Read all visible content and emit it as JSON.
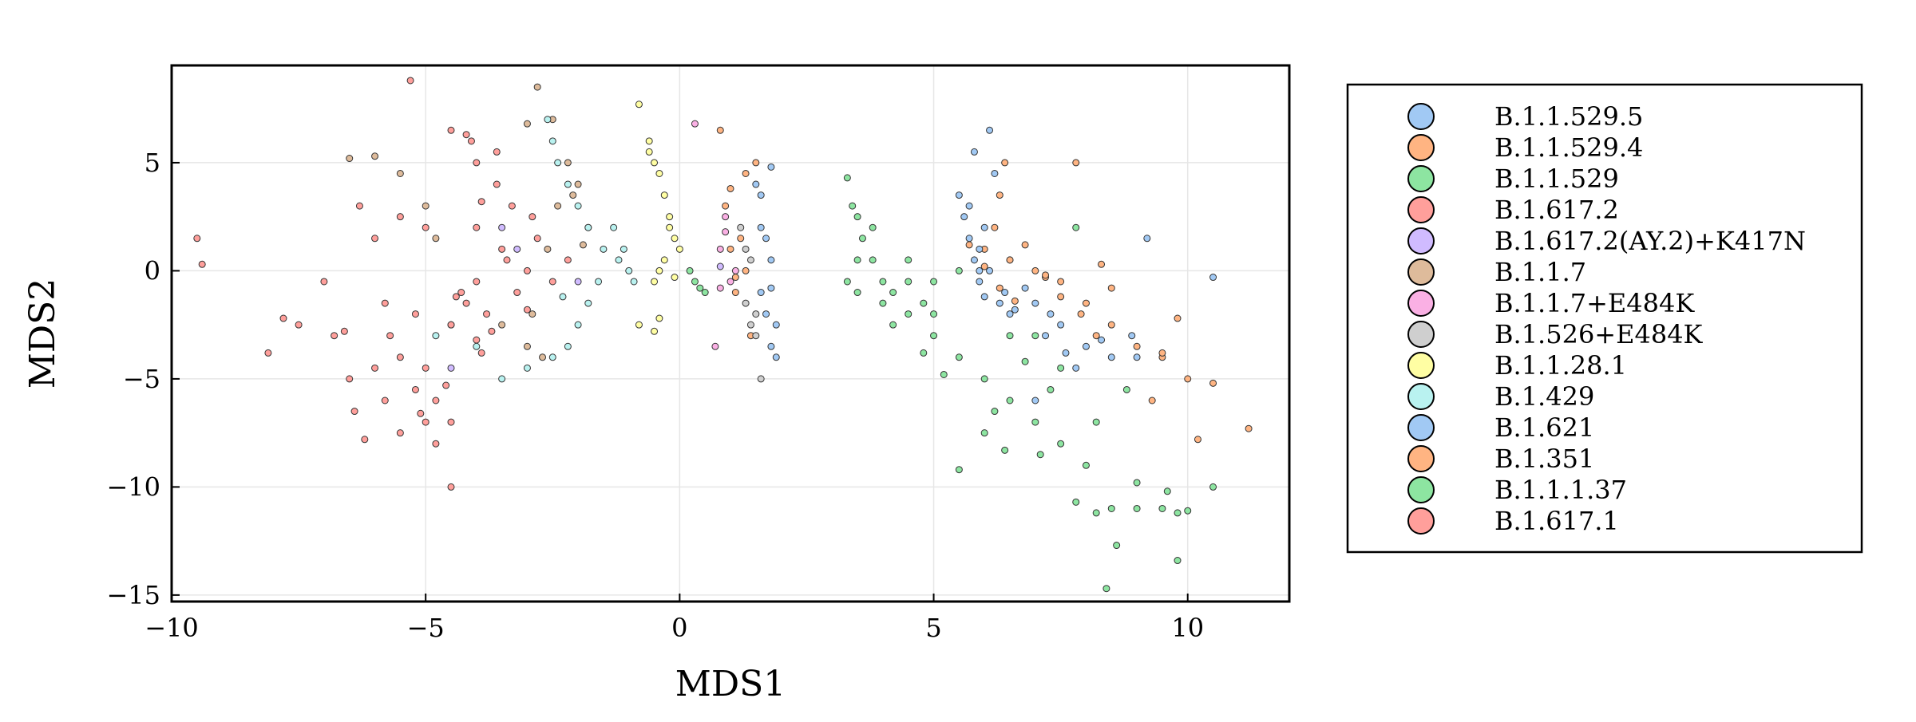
{
  "chart_data": {
    "type": "scatter",
    "title": "",
    "xlabel": "MDS1",
    "ylabel": "MDS2",
    "xlim": [
      -10,
      12
    ],
    "ylim": [
      -15.3,
      9.5
    ],
    "xticks": [
      -10,
      -5,
      0,
      5,
      10
    ],
    "yticks": [
      -15,
      -10,
      -5,
      0,
      5
    ],
    "xtick_labels": [
      "−10",
      "−5",
      "0",
      "5",
      "10"
    ],
    "ytick_labels": [
      "−15",
      "−10",
      "−5",
      "0",
      "5"
    ],
    "grid": true,
    "legend_position": "right outside",
    "series": [
      {
        "name": "B.1.1.529.5",
        "color": "#a1c9f4",
        "points": [
          [
            5.5,
            3.5
          ],
          [
            5.6,
            2.5
          ],
          [
            5.7,
            1.5
          ],
          [
            5.8,
            0.5
          ],
          [
            5.9,
            -0.5
          ],
          [
            6.0,
            -1.2
          ],
          [
            6.2,
            4.5
          ],
          [
            5.8,
            5.5
          ],
          [
            6.5,
            -2.0
          ],
          [
            7.0,
            -1.5
          ],
          [
            5.7,
            3.0
          ],
          [
            6.0,
            2.0
          ],
          [
            6.5,
            0.5
          ],
          [
            6.8,
            -0.8
          ],
          [
            7.5,
            -2.5
          ],
          [
            8.0,
            -3.5
          ],
          [
            8.5,
            -4.0
          ],
          [
            7.2,
            -3.0
          ],
          [
            6.1,
            6.5
          ],
          [
            9.2,
            1.5
          ],
          [
            10.5,
            -0.3
          ],
          [
            7.8,
            -4.5
          ],
          [
            8.3,
            -3.2
          ],
          [
            7.0,
            -6.0
          ],
          [
            1.6,
            -1.0
          ],
          [
            1.8,
            0.5
          ],
          [
            1.6,
            2.0
          ],
          [
            1.5,
            4.0
          ],
          [
            1.7,
            -2.0
          ],
          [
            1.8,
            -3.5
          ],
          [
            1.9,
            -4.0
          ],
          [
            5.9,
            0.0
          ],
          [
            6.3,
            -1.5
          ],
          [
            7.3,
            -2.0
          ]
        ]
      },
      {
        "name": "B.1.1.529.4",
        "color": "#ffb482",
        "points": [
          [
            6.3,
            3.5
          ],
          [
            6.4,
            5.0
          ],
          [
            6.2,
            2.0
          ],
          [
            6.0,
            1.0
          ],
          [
            6.5,
            0.5
          ],
          [
            7.0,
            0.0
          ],
          [
            7.5,
            -0.5
          ],
          [
            8.0,
            -1.5
          ],
          [
            8.5,
            -2.5
          ],
          [
            9.0,
            -3.5
          ],
          [
            9.5,
            -4.0
          ],
          [
            10.0,
            -5.0
          ],
          [
            10.5,
            -5.2
          ],
          [
            11.2,
            -7.3
          ],
          [
            7.8,
            5.0
          ],
          [
            8.3,
            0.3
          ],
          [
            9.8,
            -2.2
          ],
          [
            9.3,
            -6.0
          ],
          [
            10.2,
            -7.8
          ],
          [
            6.8,
            1.2
          ],
          [
            7.2,
            -0.3
          ],
          [
            0.9,
            3.0
          ],
          [
            1.0,
            1.0
          ],
          [
            1.1,
            -1.0
          ],
          [
            1.3,
            4.5
          ],
          [
            1.5,
            5.0
          ],
          [
            1.4,
            -3.0
          ],
          [
            0.8,
            6.5
          ],
          [
            1.3,
            0.0
          ],
          [
            7.9,
            -2.0
          ],
          [
            8.5,
            -0.8
          ]
        ]
      },
      {
        "name": "B.1.1.529",
        "color": "#8de5a1",
        "points": [
          [
            3.3,
            -0.5
          ],
          [
            3.5,
            0.5
          ],
          [
            3.6,
            1.5
          ],
          [
            3.8,
            2.0
          ],
          [
            4.0,
            -0.5
          ],
          [
            4.2,
            -1.0
          ],
          [
            4.5,
            0.5
          ],
          [
            3.5,
            2.5
          ],
          [
            3.4,
            3.0
          ],
          [
            4.8,
            -1.5
          ],
          [
            5.0,
            -0.5
          ],
          [
            3.3,
            4.3
          ],
          [
            0.3,
            -0.5
          ],
          [
            0.5,
            -1.0
          ],
          [
            0.2,
            0.0
          ],
          [
            0.4,
            -0.8
          ]
        ]
      },
      {
        "name": "B.1.617.2",
        "color": "#ff9f9b",
        "points": [
          [
            -3.0,
            0.0
          ],
          [
            -3.5,
            1.0
          ],
          [
            -4.0,
            2.0
          ],
          [
            -3.2,
            -1.0
          ],
          [
            -3.8,
            -2.0
          ],
          [
            -4.2,
            -1.5
          ],
          [
            -2.8,
            1.5
          ],
          [
            -3.3,
            3.0
          ],
          [
            -3.6,
            4.0
          ],
          [
            -4.0,
            5.0
          ],
          [
            -4.1,
            6.0
          ],
          [
            -2.5,
            -0.5
          ],
          [
            -2.2,
            0.5
          ],
          [
            -3.0,
            -1.8
          ],
          [
            -4.0,
            -0.5
          ],
          [
            -3.4,
            0.5
          ],
          [
            -2.9,
            2.5
          ],
          [
            -3.9,
            3.2
          ],
          [
            -3.7,
            -2.8
          ],
          [
            -4.4,
            -1.2
          ]
        ]
      },
      {
        "name": "B.1.617.2(AY.2)+K417N",
        "color": "#d0bbff",
        "points": [
          [
            -3.2,
            1.0
          ],
          [
            -2.0,
            -0.5
          ],
          [
            0.8,
            0.2
          ],
          [
            -3.5,
            2.0
          ],
          [
            -4.5,
            -4.5
          ]
        ]
      },
      {
        "name": "B.1.1.7",
        "color": "#debb9b",
        "points": [
          [
            -2.5,
            7.0
          ],
          [
            -2.8,
            8.5
          ],
          [
            -2.0,
            4.0
          ],
          [
            -1.8,
            2.0
          ],
          [
            -2.2,
            5.0
          ],
          [
            -2.4,
            3.0
          ],
          [
            -2.6,
            1.0
          ],
          [
            -2.9,
            -2.0
          ],
          [
            -3.0,
            -3.5
          ],
          [
            -2.7,
            -4.0
          ],
          [
            -3.5,
            -2.5
          ],
          [
            -6.5,
            5.2
          ],
          [
            -6.0,
            5.3
          ],
          [
            -5.5,
            4.5
          ],
          [
            -5.0,
            3.0
          ],
          [
            -4.8,
            1.5
          ],
          [
            -3.0,
            6.8
          ],
          [
            -2.1,
            3.5
          ],
          [
            -1.9,
            1.2
          ]
        ]
      },
      {
        "name": "B.1.1.7+E484K",
        "color": "#fab0e4",
        "points": [
          [
            0.8,
            1.0
          ],
          [
            1.0,
            -0.5
          ],
          [
            0.3,
            6.8
          ],
          [
            0.9,
            2.5
          ],
          [
            1.1,
            0.0
          ],
          [
            0.8,
            -0.8
          ],
          [
            0.7,
            -3.5
          ],
          [
            0.9,
            1.8
          ]
        ]
      },
      {
        "name": "B.1.526+E484K",
        "color": "#cfcfcf",
        "points": [
          [
            1.4,
            -2.5
          ],
          [
            1.5,
            -3.0
          ],
          [
            1.3,
            -1.5
          ],
          [
            1.2,
            2.0
          ],
          [
            1.6,
            -5.0
          ],
          [
            1.4,
            0.5
          ],
          [
            1.5,
            -2.0
          ],
          [
            1.3,
            1.0
          ]
        ]
      },
      {
        "name": "B.1.1.28.1",
        "color": "#fffea3",
        "points": [
          [
            -0.6,
            6.0
          ],
          [
            -0.5,
            5.0
          ],
          [
            -0.4,
            4.5
          ],
          [
            -0.3,
            3.5
          ],
          [
            -0.2,
            2.5
          ],
          [
            -0.1,
            1.5
          ],
          [
            -0.3,
            0.5
          ],
          [
            -0.5,
            -0.5
          ],
          [
            -0.8,
            -2.5
          ],
          [
            -0.5,
            -2.8
          ],
          [
            -0.8,
            7.7
          ],
          [
            -0.4,
            -2.2
          ],
          [
            -0.6,
            5.5
          ],
          [
            -0.2,
            2.0
          ],
          [
            -0.4,
            0.0
          ],
          [
            0.0,
            1.0
          ],
          [
            -0.1,
            -0.3
          ]
        ]
      },
      {
        "name": "B.1.429",
        "color": "#b9f2f0",
        "points": [
          [
            -1.0,
            0.0
          ],
          [
            -1.2,
            0.5
          ],
          [
            -1.5,
            1.0
          ],
          [
            -1.8,
            2.0
          ],
          [
            -2.0,
            3.0
          ],
          [
            -2.2,
            4.0
          ],
          [
            -2.4,
            5.0
          ],
          [
            -2.5,
            6.0
          ],
          [
            -2.6,
            7.0
          ],
          [
            -1.6,
            -0.5
          ],
          [
            -1.8,
            -1.5
          ],
          [
            -2.0,
            -2.5
          ],
          [
            -2.2,
            -3.5
          ],
          [
            -2.5,
            -4.0
          ],
          [
            -3.0,
            -4.5
          ],
          [
            -3.5,
            -5.0
          ],
          [
            -4.0,
            -3.5
          ],
          [
            -1.3,
            2.0
          ],
          [
            -1.1,
            1.0
          ],
          [
            -0.9,
            -0.5
          ],
          [
            -4.5,
            -2.5
          ],
          [
            -4.8,
            -3.0
          ],
          [
            -2.3,
            -1.2
          ]
        ]
      },
      {
        "name": "B.1.621",
        "color": "#a1c9f4",
        "points": [
          [
            5.9,
            1.0
          ],
          [
            6.1,
            0.0
          ],
          [
            6.4,
            -1.0
          ],
          [
            6.6,
            -1.8
          ],
          [
            7.6,
            -3.8
          ],
          [
            8.9,
            -3.0
          ],
          [
            9.0,
            -4.0
          ],
          [
            1.7,
            1.5
          ],
          [
            1.8,
            -0.8
          ],
          [
            1.9,
            -2.5
          ],
          [
            1.6,
            3.5
          ],
          [
            1.8,
            4.8
          ]
        ]
      },
      {
        "name": "B.1.351",
        "color": "#ffb482",
        "points": [
          [
            5.7,
            1.2
          ],
          [
            6.0,
            0.2
          ],
          [
            6.3,
            -0.8
          ],
          [
            6.6,
            -1.4
          ],
          [
            7.2,
            -0.2
          ],
          [
            7.5,
            -1.2
          ],
          [
            8.2,
            -3.0
          ],
          [
            9.5,
            -3.8
          ],
          [
            1.1,
            -0.3
          ],
          [
            1.2,
            1.5
          ],
          [
            1.0,
            3.8
          ]
        ]
      },
      {
        "name": "B.1.1.1.37",
        "color": "#8de5a1",
        "points": [
          [
            3.5,
            -1.0
          ],
          [
            4.0,
            -1.5
          ],
          [
            4.5,
            -2.0
          ],
          [
            5.0,
            -3.0
          ],
          [
            5.5,
            -4.0
          ],
          [
            6.0,
            -5.0
          ],
          [
            6.5,
            -6.0
          ],
          [
            7.0,
            -7.0
          ],
          [
            7.5,
            -8.0
          ],
          [
            8.0,
            -9.0
          ],
          [
            8.5,
            -11.0
          ],
          [
            9.0,
            -11.0
          ],
          [
            9.5,
            -11.0
          ],
          [
            9.8,
            -11.2
          ],
          [
            10.0,
            -11.1
          ],
          [
            7.8,
            -10.7
          ],
          [
            8.2,
            -11.2
          ],
          [
            8.6,
            -12.7
          ],
          [
            9.8,
            -13.4
          ],
          [
            8.4,
            -14.7
          ],
          [
            9.6,
            -10.2
          ],
          [
            9.0,
            -9.8
          ],
          [
            10.5,
            -10.0
          ],
          [
            6.0,
            -7.5
          ],
          [
            5.5,
            -9.2
          ],
          [
            7.0,
            -3.0
          ],
          [
            7.5,
            -4.5
          ],
          [
            5.0,
            -2.0
          ],
          [
            6.5,
            -3.0
          ],
          [
            4.2,
            -2.5
          ],
          [
            5.2,
            -4.8
          ],
          [
            6.2,
            -6.5
          ],
          [
            7.3,
            -5.5
          ],
          [
            8.2,
            -7.0
          ],
          [
            7.8,
            2.0
          ],
          [
            3.8,
            0.5
          ],
          [
            4.5,
            -0.5
          ],
          [
            5.5,
            0.0
          ],
          [
            6.8,
            -4.2
          ],
          [
            8.8,
            -5.5
          ],
          [
            4.8,
            -3.8
          ],
          [
            6.4,
            -8.3
          ],
          [
            7.1,
            -8.5
          ]
        ]
      },
      {
        "name": "B.1.617.1",
        "color": "#ff9f9b",
        "points": [
          [
            -5.0,
            -4.5
          ],
          [
            -5.5,
            -4.0
          ],
          [
            -5.2,
            -5.5
          ],
          [
            -5.8,
            -6.0
          ],
          [
            -6.2,
            -7.8
          ],
          [
            -5.0,
            -7.0
          ],
          [
            -4.5,
            -7.0
          ],
          [
            -4.8,
            -8.0
          ],
          [
            -4.5,
            -10.0
          ],
          [
            -4.8,
            -6.0
          ],
          [
            -5.5,
            -7.5
          ],
          [
            -6.5,
            -5.0
          ],
          [
            -6.0,
            -4.5
          ],
          [
            -6.8,
            -3.0
          ],
          [
            -7.5,
            -2.5
          ],
          [
            -8.1,
            -3.8
          ],
          [
            -9.5,
            1.5
          ],
          [
            -9.4,
            0.3
          ],
          [
            -7.0,
            -0.5
          ],
          [
            -6.0,
            1.5
          ],
          [
            -5.5,
            2.5
          ],
          [
            -5.0,
            2.0
          ],
          [
            -5.3,
            8.8
          ],
          [
            -4.5,
            6.5
          ],
          [
            -4.2,
            6.3
          ],
          [
            -3.6,
            5.5
          ],
          [
            -5.8,
            -1.5
          ],
          [
            -5.2,
            -2.0
          ],
          [
            -4.5,
            -2.5
          ],
          [
            -4.0,
            -3.2
          ],
          [
            -6.3,
            3.0
          ],
          [
            -6.6,
            -2.8
          ],
          [
            -7.8,
            -2.2
          ],
          [
            -5.7,
            -3.0
          ],
          [
            -4.6,
            -5.3
          ],
          [
            -5.1,
            -6.6
          ],
          [
            -4.3,
            -1.0
          ],
          [
            -3.9,
            -3.8
          ],
          [
            -6.4,
            -6.5
          ]
        ]
      }
    ]
  }
}
